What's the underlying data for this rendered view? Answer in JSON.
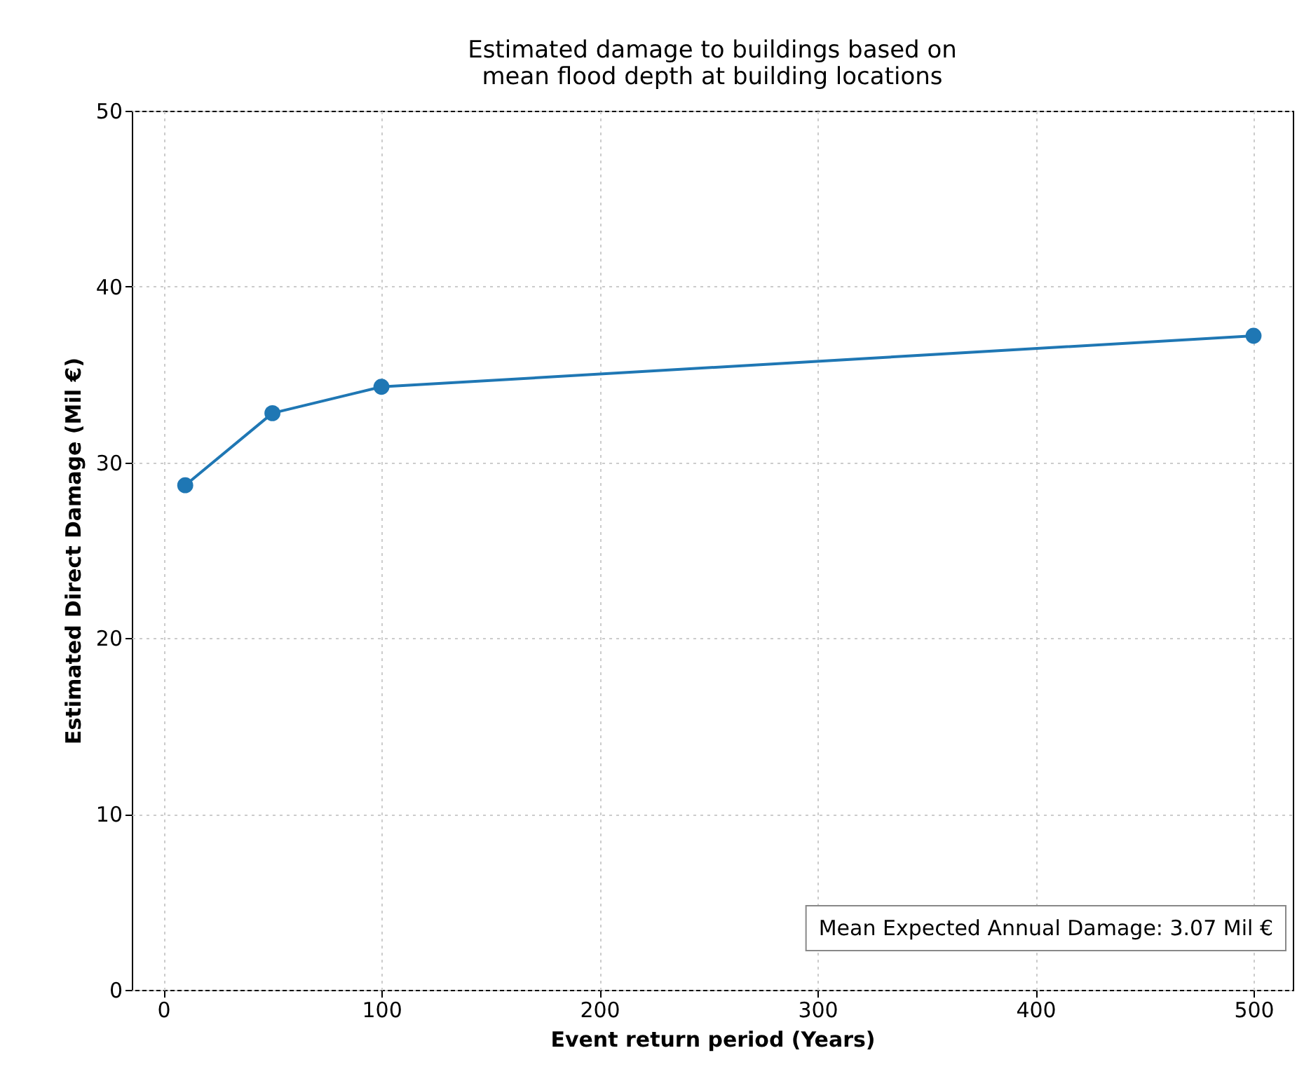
{
  "chart_data": {
    "type": "line",
    "title": "Estimated damage to buildings based on\nmean flood depth at building locations",
    "xlabel": "Event return period (Years)",
    "ylabel": "Estimated Direct Damage (Mil €)",
    "x": [
      10,
      50,
      100,
      500
    ],
    "series": [
      {
        "color": "#1f77b4",
        "values": [
          28.7,
          32.8,
          34.3,
          37.2
        ]
      }
    ],
    "xlim": [
      -14.5,
      518
    ],
    "xticks": [
      0,
      100,
      200,
      300,
      400,
      500
    ],
    "ylim": [
      0,
      50
    ],
    "yticks": [
      0,
      10,
      20,
      30,
      40,
      50
    ],
    "grid": true,
    "marker": "circle",
    "line_style": "solid",
    "annotations": [
      "Mean Expected Annual Damage: 3.07 Mil €"
    ]
  }
}
